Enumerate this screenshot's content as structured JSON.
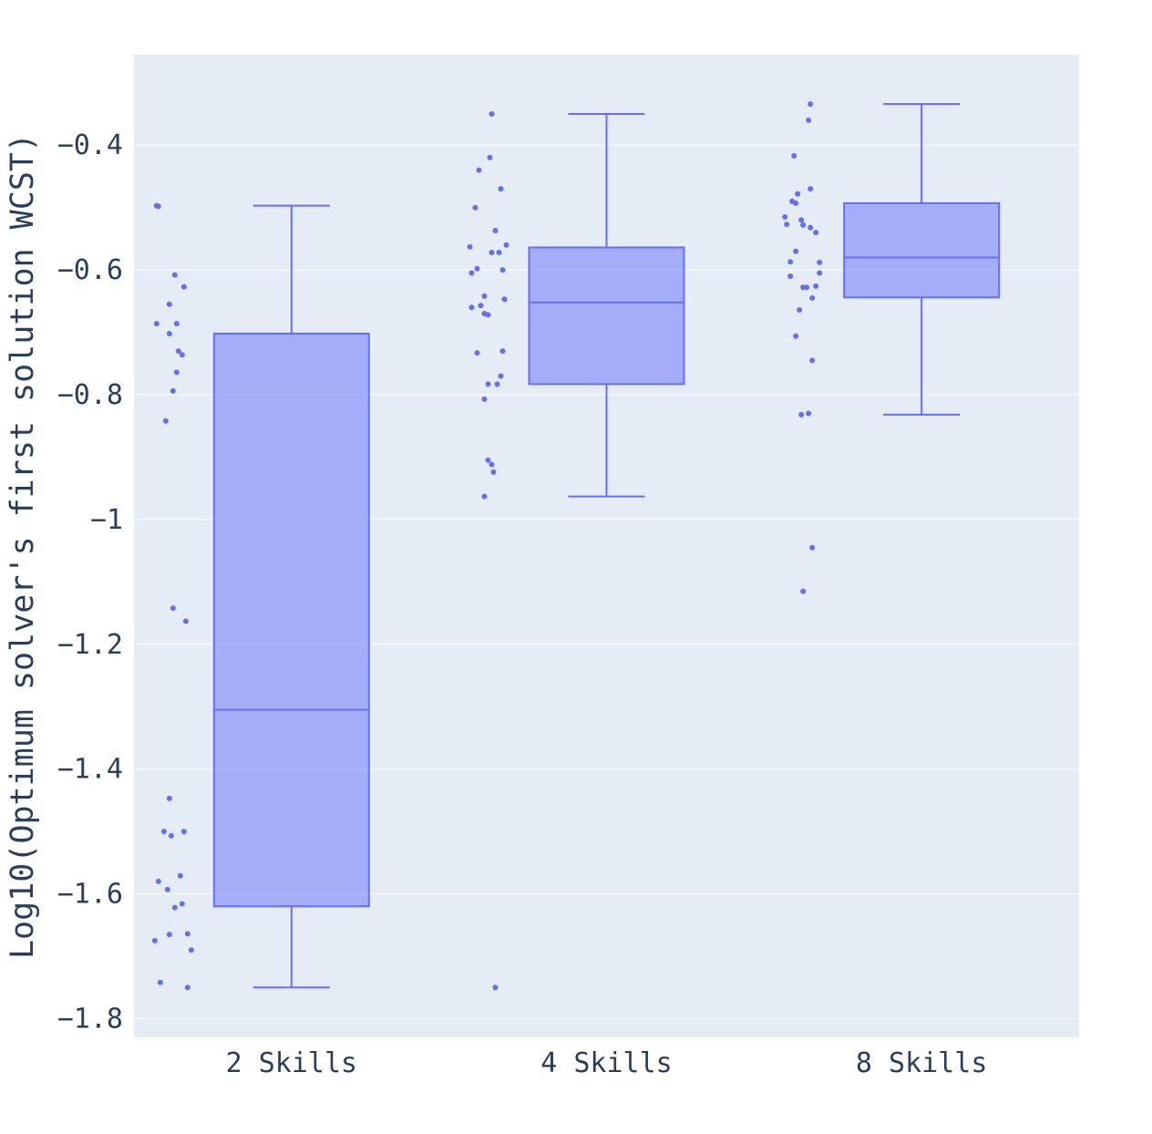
{
  "chart_data": {
    "type": "box",
    "ylabel": "Log10(Optimum solver's first solution WCST)",
    "ylim": [
      -1.83,
      -0.255
    ],
    "yticks": [
      -1.8,
      -1.6,
      -1.4,
      -1.2,
      -1,
      -0.8,
      -0.6,
      -0.4
    ],
    "ytick_labels": [
      "−1.8",
      "−1.6",
      "−1.4",
      "−1.2",
      "−1",
      "−0.8",
      "−0.6",
      "−0.4"
    ],
    "categories": [
      "2 Skills",
      "4 Skills",
      "8 Skills"
    ],
    "grid": true,
    "colors": {
      "plot_bg": "#e5ecf6",
      "grid": "#ffffff",
      "box_line": "#636efa",
      "box_fill": "rgba(99,110,250,0.5)",
      "point": "#636efa",
      "text": "#2a3f5f"
    },
    "boxes": [
      {
        "category": "2 Skills",
        "lower_whisker": -1.75,
        "q1": -1.62,
        "median": -1.305,
        "q3": -0.702,
        "upper_whisker": -0.497,
        "points": [
          {
            "j": 0.05,
            "y": -0.497
          },
          {
            "j": 0.1,
            "y": -0.498
          },
          {
            "j": 0.55,
            "y": -0.608
          },
          {
            "j": 0.8,
            "y": -0.627
          },
          {
            "j": 0.4,
            "y": -0.655
          },
          {
            "j": 0.05,
            "y": -0.686
          },
          {
            "j": 0.6,
            "y": -0.686
          },
          {
            "j": 0.4,
            "y": -0.702
          },
          {
            "j": 0.65,
            "y": -0.73
          },
          {
            "j": 0.75,
            "y": -0.736
          },
          {
            "j": 0.6,
            "y": -0.764
          },
          {
            "j": 0.5,
            "y": -0.794
          },
          {
            "j": 0.3,
            "y": -0.842
          },
          {
            "j": 0.5,
            "y": -1.142
          },
          {
            "j": 0.85,
            "y": -1.163
          },
          {
            "j": 0.4,
            "y": -1.447
          },
          {
            "j": 0.25,
            "y": -1.5
          },
          {
            "j": 0.45,
            "y": -1.507
          },
          {
            "j": 0.8,
            "y": -1.5
          },
          {
            "j": 0.7,
            "y": -1.571
          },
          {
            "j": 0.1,
            "y": -1.58
          },
          {
            "j": 0.35,
            "y": -1.593
          },
          {
            "j": 0.75,
            "y": -1.616
          },
          {
            "j": 0.55,
            "y": -1.622
          },
          {
            "j": 0.0,
            "y": -1.675
          },
          {
            "j": 0.4,
            "y": -1.665
          },
          {
            "j": 0.9,
            "y": -1.664
          },
          {
            "j": 1.0,
            "y": -1.69
          },
          {
            "j": 0.15,
            "y": -1.742
          },
          {
            "j": 0.9,
            "y": -1.75
          }
        ]
      },
      {
        "category": "4 Skills",
        "lower_whisker": -0.963,
        "q1": -0.783,
        "median": -0.652,
        "q3": -0.564,
        "upper_whisker": -0.35,
        "points": [
          {
            "j": 0.6,
            "y": -0.35
          },
          {
            "j": 0.55,
            "y": -0.42
          },
          {
            "j": 0.25,
            "y": -0.44
          },
          {
            "j": 0.85,
            "y": -0.47
          },
          {
            "j": 0.15,
            "y": -0.5
          },
          {
            "j": 0.7,
            "y": -0.537
          },
          {
            "j": 1.0,
            "y": -0.56
          },
          {
            "j": 0.0,
            "y": -0.563
          },
          {
            "j": 0.6,
            "y": -0.572
          },
          {
            "j": 0.8,
            "y": -0.572
          },
          {
            "j": 0.2,
            "y": -0.598
          },
          {
            "j": 0.9,
            "y": -0.6
          },
          {
            "j": 0.05,
            "y": -0.605
          },
          {
            "j": 0.4,
            "y": -0.642
          },
          {
            "j": 0.95,
            "y": -0.647
          },
          {
            "j": 0.05,
            "y": -0.66
          },
          {
            "j": 0.3,
            "y": -0.657
          },
          {
            "j": 0.4,
            "y": -0.67
          },
          {
            "j": 0.5,
            "y": -0.672
          },
          {
            "j": 0.2,
            "y": -0.733
          },
          {
            "j": 0.9,
            "y": -0.73
          },
          {
            "j": 0.85,
            "y": -0.77
          },
          {
            "j": 0.5,
            "y": -0.783
          },
          {
            "j": 0.75,
            "y": -0.783
          },
          {
            "j": 0.4,
            "y": -0.807
          },
          {
            "j": 0.5,
            "y": -0.905
          },
          {
            "j": 0.6,
            "y": -0.912
          },
          {
            "j": 0.65,
            "y": -0.924
          },
          {
            "j": 0.4,
            "y": -0.963
          },
          {
            "j": 0.7,
            "y": -1.75
          }
        ]
      },
      {
        "category": "8 Skills",
        "lower_whisker": -0.832,
        "q1": -0.644,
        "median": -0.58,
        "q3": -0.493,
        "upper_whisker": -0.334,
        "points": [
          {
            "j": 0.7,
            "y": -0.334
          },
          {
            "j": 0.65,
            "y": -0.36
          },
          {
            "j": 0.25,
            "y": -0.417
          },
          {
            "j": 0.7,
            "y": -0.47
          },
          {
            "j": 0.35,
            "y": -0.478
          },
          {
            "j": 0.2,
            "y": -0.49
          },
          {
            "j": 0.3,
            "y": -0.493
          },
          {
            "j": 0.0,
            "y": -0.515
          },
          {
            "j": 0.45,
            "y": -0.52
          },
          {
            "j": 0.05,
            "y": -0.527
          },
          {
            "j": 0.5,
            "y": -0.528
          },
          {
            "j": 0.7,
            "y": -0.532
          },
          {
            "j": 0.85,
            "y": -0.54
          },
          {
            "j": 0.3,
            "y": -0.57
          },
          {
            "j": 0.15,
            "y": -0.587
          },
          {
            "j": 0.95,
            "y": -0.588
          },
          {
            "j": 0.95,
            "y": -0.605
          },
          {
            "j": 0.15,
            "y": -0.61
          },
          {
            "j": 0.5,
            "y": -0.628
          },
          {
            "j": 0.6,
            "y": -0.628
          },
          {
            "j": 0.85,
            "y": -0.626
          },
          {
            "j": 0.75,
            "y": -0.645
          },
          {
            "j": 0.4,
            "y": -0.664
          },
          {
            "j": 0.3,
            "y": -0.706
          },
          {
            "j": 0.75,
            "y": -0.745
          },
          {
            "j": 0.65,
            "y": -0.83
          },
          {
            "j": 0.45,
            "y": -0.832
          },
          {
            "j": 0.75,
            "y": -1.045
          },
          {
            "j": 0.5,
            "y": -1.115
          }
        ]
      }
    ]
  }
}
